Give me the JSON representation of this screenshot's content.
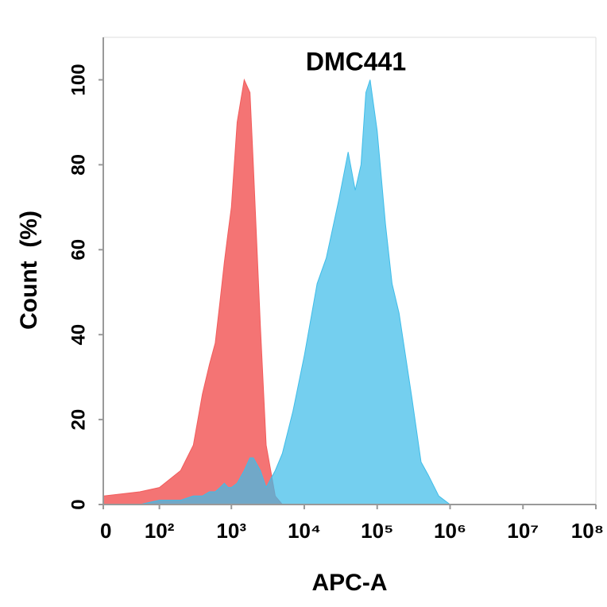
{
  "chart_data": {
    "type": "area",
    "title": "DMC441",
    "x_label": "APC-A",
    "y_label": "Count  (%)",
    "x": [
      0,
      50,
      100,
      200,
      300,
      400,
      500,
      600,
      700,
      800,
      900,
      1000,
      1200,
      1500,
      1800,
      2000,
      2500,
      3000,
      4000,
      5000,
      7000,
      10000,
      15000,
      20000,
      30000,
      40000,
      50000,
      60000,
      70000,
      80000,
      100000,
      130000,
      160000,
      200000,
      300000,
      400000,
      500000,
      700000,
      1000000,
      1500000,
      10000000,
      100000000
    ],
    "series": [
      {
        "color": "#f25c5c",
        "values": [
          2,
          3,
          4,
          8,
          14,
          26,
          33,
          38,
          48,
          57,
          64,
          70,
          90,
          100,
          97,
          80,
          42,
          14,
          2,
          0,
          0,
          0,
          0,
          0,
          0,
          0,
          0,
          0,
          0,
          0,
          0,
          0,
          0,
          0,
          0,
          0,
          0,
          0,
          0,
          0,
          0,
          0
        ]
      },
      {
        "color": "#3fbde9",
        "values": [
          0,
          0,
          1,
          1,
          2,
          2,
          3,
          3,
          4,
          5,
          4,
          4,
          5,
          8,
          11,
          11,
          8,
          4,
          8,
          12,
          22,
          35,
          52,
          58,
          72,
          83,
          74,
          80,
          97,
          100,
          88,
          66,
          52,
          45,
          25,
          10,
          7,
          2,
          0,
          0,
          0,
          0
        ]
      }
    ],
    "xscale": "asinh",
    "xlim": [
      0,
      100000000
    ],
    "xticks": [
      0,
      {
        "value": 100,
        "label": "10²"
      },
      {
        "value": 1000,
        "label": "10³"
      },
      {
        "value": 10000,
        "label": "10⁴"
      },
      {
        "value": 100000,
        "label": "10⁵"
      },
      {
        "value": 1000000,
        "label": "10⁶"
      },
      {
        "value": 10000000,
        "label": "10⁷"
      },
      {
        "value": 100000000,
        "label": "10⁸"
      }
    ],
    "ylim": [
      0,
      110
    ],
    "yticks": [
      0,
      20,
      40,
      60,
      80,
      100
    ]
  }
}
